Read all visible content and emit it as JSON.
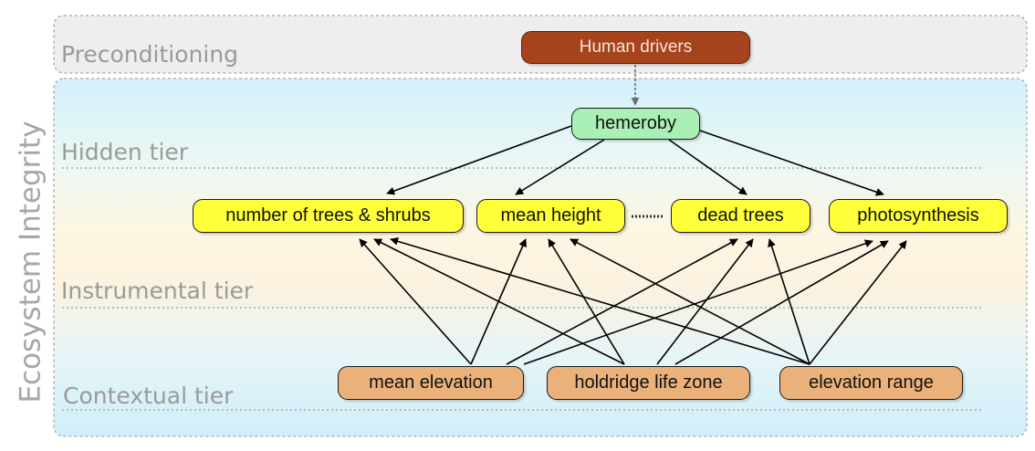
{
  "title": "Ecosystem Integrity",
  "bands": {
    "preconditioning": "Preconditioning",
    "hidden": "Hidden tier",
    "instrumental": "Instrumental tier",
    "contextual": "Contextual tier"
  },
  "nodes": {
    "human_drivers": "Human drivers",
    "hemeroby": "hemeroby",
    "trees_shrubs": "number of trees & shrubs",
    "mean_height": "mean height",
    "dead_trees": "dead trees",
    "photosynthesis": "photosynthesis",
    "mean_elevation": "mean elevation",
    "holdridge": "holdridge life zone",
    "elevation_range": "elevation range"
  },
  "colors": {
    "human_drivers": "#a4431c",
    "hidden_node": "#a9efb6",
    "instrumental_node": "#ffff3a",
    "contextual_node": "#eab17a",
    "band_label": "#9a9a9a"
  }
}
